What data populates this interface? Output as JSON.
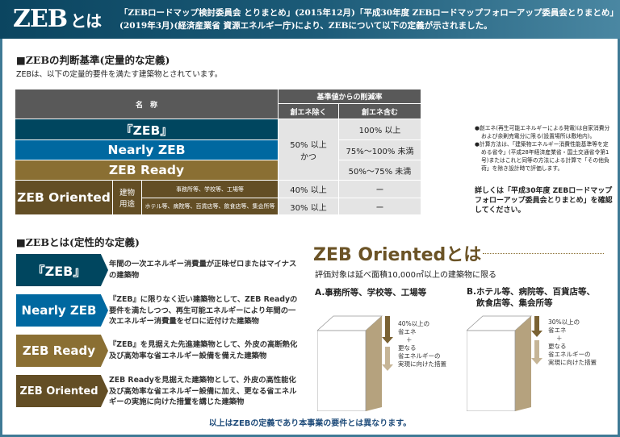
{
  "header": {
    "title": "ZEB",
    "title_suffix": "とは",
    "description": "「ZEBロードマップ検討委員会 とりまとめ」(2015年12月)「平成30年度 ZEBロードマップフォローアップ委員会とりまとめ」(2019年3月)(経済産業省 資源エネルギー庁)により、ZEBについて以下の定義が示されました。"
  },
  "quant": {
    "title": "■ZEBの判断基準(定量的な定義)",
    "subtitle": "ZEBは、以下の定量的要件を満たす建築物とされています。",
    "table": {
      "col_name": "名　称",
      "col_rate": "基準値からの削減率",
      "col_excl": "創エネ除く",
      "col_incl": "創エネ含む",
      "zeb": "『ZEB』",
      "nearly": "Nearly ZEB",
      "ready": "ZEB Ready",
      "oriented": "ZEB Oriented",
      "use_label": "建物用途",
      "use_a": "事務所等、学校等、工場等",
      "use_b": "ホテル等、病院等、百貨店等、飲食店等、集会所等",
      "excl_common": "50% 以上 かつ",
      "zeb_incl": "100% 以上",
      "nearly_incl": "75%〜100% 未満",
      "ready_incl": "50%〜75% 未満",
      "a_excl": "40% 以上",
      "a_incl": "ー",
      "b_excl": "30% 以上",
      "b_incl": "ー"
    },
    "notes": [
      "●創エネ(再生可能エネルギーによる発電)は自家消費分および余剰売電分に限る(設置場所は敷地内)。",
      "●計算方法は、「建築物エネルギー消費性能基準等を定める省令」(平成28年経済産業省・国土交通省令第1号)またはこれと同等の方法による計算で「その他負荷」を除き設計時で評価します。"
    ],
    "more": "詳しくは「平成30年度 ZEBロードマップフォローアップ委員会とりまとめ」を確認してください。"
  },
  "qual": {
    "title": "■ZEBとは(定性的な定義)",
    "items": [
      {
        "label": "『ZEB』",
        "desc": "年間の一次エネルギー消費量が正味ゼロまたはマイナスの建築物"
      },
      {
        "label": "Nearly ZEB",
        "desc": "『ZEB』に限りなく近い建築物として、ZEB Readyの要件を満たしつつ、再生可能エネルギーにより年間の一次エネルギー消費量をゼロに近付けた建築物"
      },
      {
        "label": "ZEB Ready",
        "desc": "『ZEB』を見据えた先進建築物として、外皮の高断熱化及び高効率な省エネルギー設備を備えた建築物"
      },
      {
        "label": "ZEB Oriented",
        "desc": "ZEB Readyを見据えた建築物として、外皮の高性能化及び高効率な省エネルギー設備に加え、更なる省エネルギーの実施に向けた措置を講じた建築物"
      }
    ]
  },
  "oriented": {
    "title": "ZEB Orientedとは",
    "subtitle": "評価対象は延べ面積10,000㎡以上の建築物に限る",
    "a": {
      "title": "A.事務所等、学校等、工場等",
      "l1": "40%以上の",
      "l2": "省エネ",
      "plus": "＋",
      "l3": "更なる",
      "l4": "省エネルギーの",
      "l5": "実現に向けた措置"
    },
    "b": {
      "title": "B.ホテル等、病院等、百貨店等、",
      "title2": "飲食店等、集会所等",
      "l1": "30%以上の",
      "l2": "省エネ",
      "plus": "＋",
      "l3": "更なる",
      "l4": "省エネルギーの",
      "l5": "実現に向けた措置"
    }
  },
  "footer": "以上はZEBの定義であり本事業の要件とは異なります。",
  "colors": {
    "zeb": "#00465f",
    "nearly": "#0068a0",
    "ready": "#8a6f33",
    "oriented": "#634e25",
    "header": "#0b4560"
  }
}
